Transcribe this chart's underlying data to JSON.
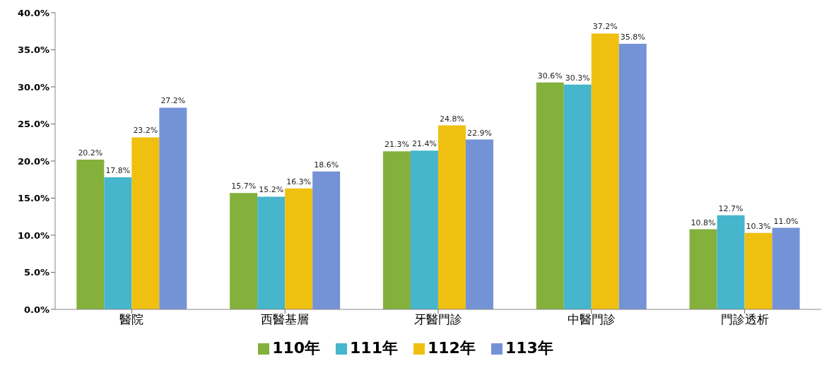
{
  "chart_data": {
    "type": "bar",
    "categories": [
      "醫院",
      "西醫基層",
      "牙醫門診",
      "中醫門診",
      "門診透析"
    ],
    "series": [
      {
        "name": "110年",
        "color": "#84b03c",
        "values": [
          20.2,
          15.7,
          21.3,
          30.6,
          10.8
        ],
        "value_labels": [
          "20.2%",
          "15.7%",
          "21.3%",
          "30.6%",
          "10.8%"
        ]
      },
      {
        "name": "111年",
        "color": "#45b6cc",
        "values": [
          17.8,
          15.2,
          21.4,
          30.3,
          12.7
        ],
        "value_labels": [
          "17.8%",
          "15.2%",
          "21.4%",
          "30.3%",
          "12.7%"
        ]
      },
      {
        "name": "112年",
        "color": "#f0c010",
        "values": [
          23.2,
          16.3,
          24.8,
          37.2,
          10.3
        ],
        "value_labels": [
          "23.2%",
          "16.3%",
          "24.8%",
          "37.2%",
          "10.3%"
        ]
      },
      {
        "name": "113年",
        "color": "#7493d6",
        "values": [
          27.2,
          18.6,
          22.9,
          35.8,
          11.0
        ],
        "value_labels": [
          "27.2%",
          "18.6%",
          "22.9%",
          "35.8%",
          "11.0%"
        ]
      }
    ],
    "ylim": [
      0,
      40
    ],
    "yticks": [
      {
        "value": 0,
        "label": "0.0%"
      },
      {
        "value": 5,
        "label": "5.0%"
      },
      {
        "value": 10,
        "label": "10.0%"
      },
      {
        "value": 15,
        "label": "15.0%"
      },
      {
        "value": 20,
        "label": "20.0%"
      },
      {
        "value": 25,
        "label": "25.0%"
      },
      {
        "value": 30,
        "label": "30.0%"
      },
      {
        "value": 35,
        "label": "35.0%"
      },
      {
        "value": 40,
        "label": "40.0%"
      }
    ],
    "grid": false,
    "legend": "bottom"
  }
}
